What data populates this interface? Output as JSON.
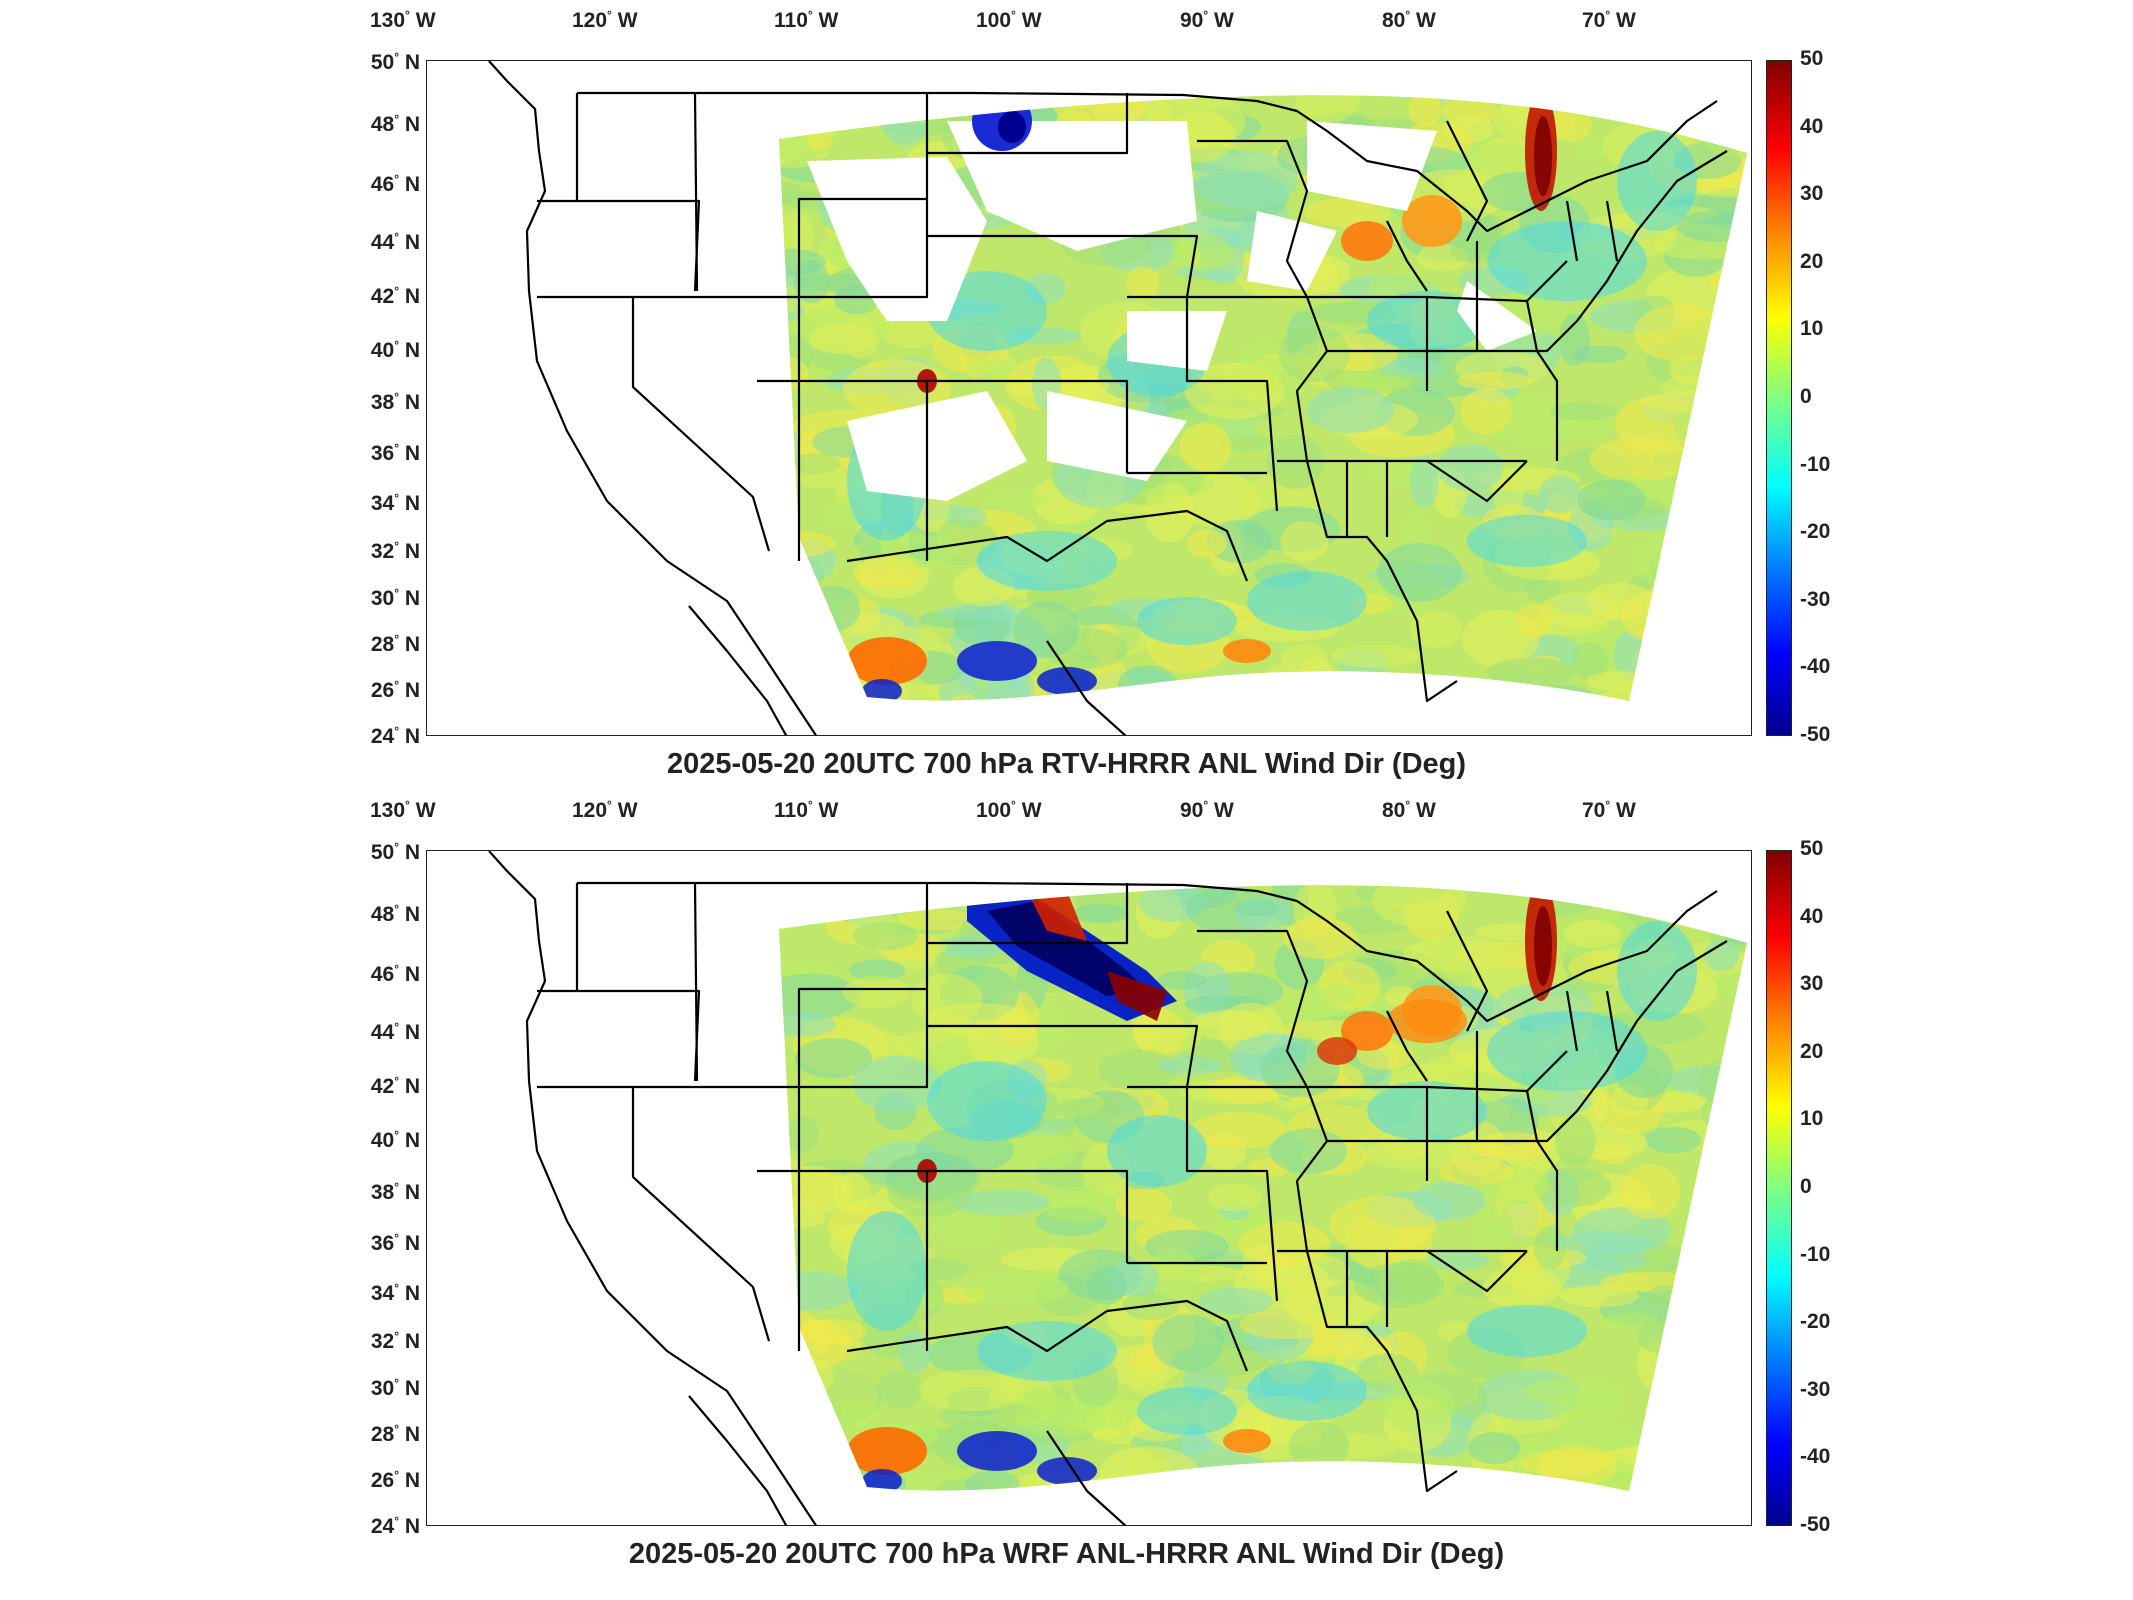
{
  "panels": [
    {
      "title": "2025-05-20 20UTC 700 hPa RTV-HRRR ANL Wind Dir (Deg)",
      "variant": "rtv"
    },
    {
      "title": "2025-05-20 20UTC 700 hPa WRF ANL-HRRR ANL Wind Dir (Deg)",
      "variant": "wrf"
    }
  ],
  "lon_labels": [
    "130",
    "120",
    "110",
    "100",
    "90",
    "80",
    "70"
  ],
  "lon_suffix": "W",
  "lat_labels": [
    "50",
    "48",
    "46",
    "44",
    "42",
    "40",
    "38",
    "36",
    "34",
    "32",
    "30",
    "28",
    "26",
    "24"
  ],
  "lat_suffix": "N",
  "colorbar": {
    "ticks": [
      "50",
      "40",
      "30",
      "20",
      "10",
      "0",
      "-10",
      "-20",
      "-30",
      "-40",
      "-50"
    ],
    "min": -50,
    "max": 50,
    "colormap": "jet",
    "colors": [
      "#00008f",
      "#0000ff",
      "#0080ff",
      "#00ffff",
      "#80ff80",
      "#ffff00",
      "#ff8000",
      "#ff0000",
      "#800000"
    ]
  },
  "map": {
    "lon_range": [
      -131,
      -65
    ],
    "lat_range": [
      24,
      50
    ],
    "background_field_color": "#bfe86a",
    "coastline_color": "#000000"
  }
}
